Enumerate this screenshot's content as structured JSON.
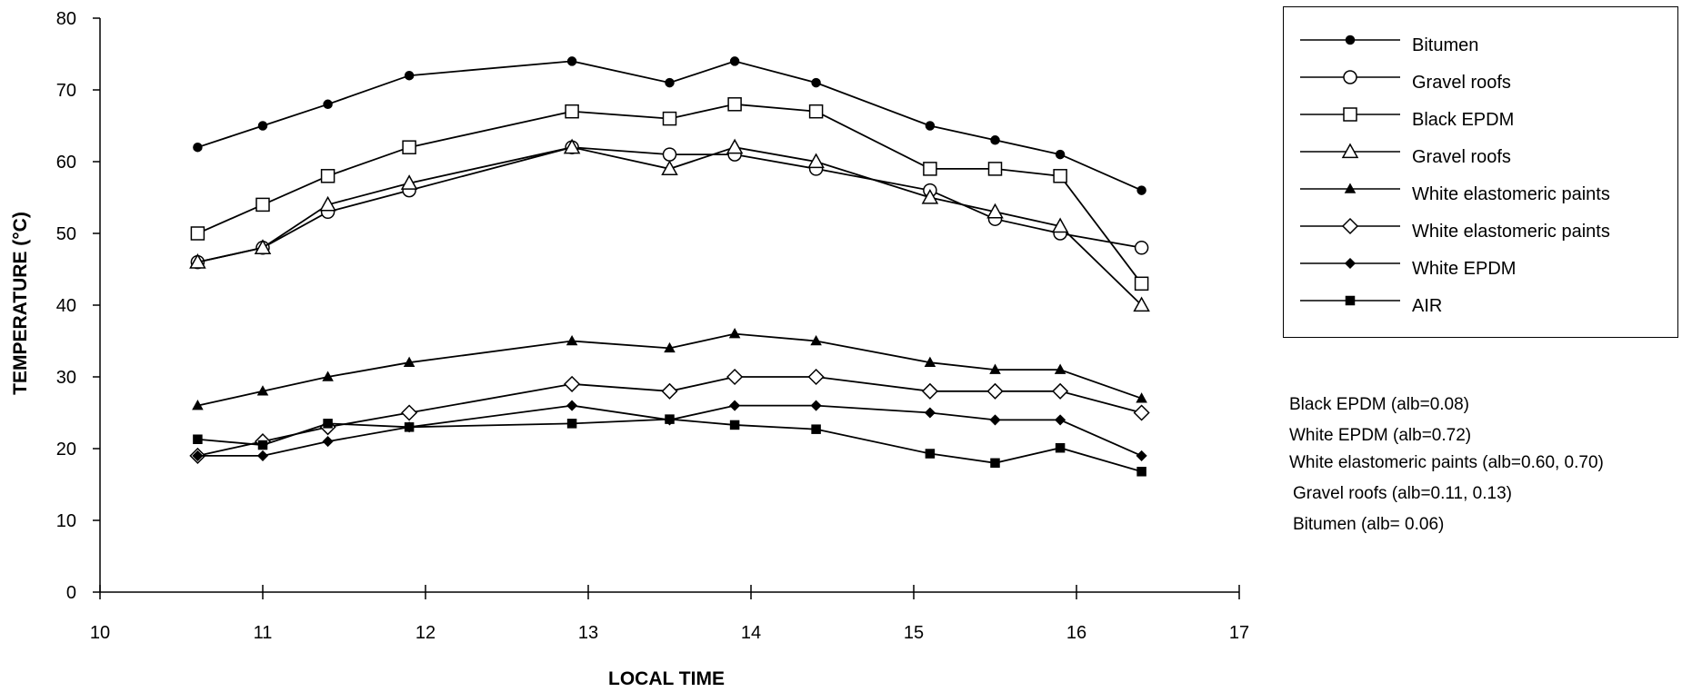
{
  "chart_data": {
    "type": "line",
    "xlabel": "LOCAL TIME",
    "ylabel": "TEMPERATURE (°C)",
    "xlim": [
      10,
      17
    ],
    "ylim": [
      0,
      80
    ],
    "x_ticks": [
      "10",
      "11",
      "12",
      "13",
      "14",
      "15",
      "16",
      "17"
    ],
    "y_ticks": [
      "0",
      "10",
      "20",
      "30",
      "40",
      "50",
      "60",
      "70",
      "80"
    ],
    "grid": false,
    "legend_position": "top-right",
    "series": [
      {
        "name": "Bitumen",
        "marker": "filled-circle",
        "x": [
          10.6,
          11.0,
          11.4,
          11.9,
          12.9,
          13.5,
          13.9,
          14.4,
          15.1,
          15.5,
          15.9,
          16.4
        ],
        "y": [
          62,
          65,
          68,
          72,
          74,
          71,
          74,
          71,
          65,
          63,
          61,
          56
        ]
      },
      {
        "name": "Gravel roofs",
        "marker": "open-circle",
        "x": [
          10.6,
          11.0,
          11.4,
          11.9,
          12.9,
          13.5,
          13.9,
          14.4,
          15.1,
          15.5,
          15.9,
          16.4
        ],
        "y": [
          46,
          48,
          53,
          56,
          62,
          61,
          61,
          59,
          56,
          52,
          50,
          48
        ]
      },
      {
        "name": "Black EPDM",
        "marker": "open-square",
        "x": [
          10.6,
          11.0,
          11.4,
          11.9,
          12.9,
          13.5,
          13.9,
          14.4,
          15.1,
          15.5,
          15.9,
          16.4
        ],
        "y": [
          50,
          54,
          58,
          62,
          67,
          66,
          68,
          67,
          59,
          59,
          58,
          43
        ]
      },
      {
        "name": "Gravel roofs",
        "marker": "open-triangle",
        "x": [
          10.6,
          11.0,
          11.4,
          11.9,
          12.9,
          13.5,
          13.9,
          14.4,
          15.1,
          15.5,
          15.9,
          16.4
        ],
        "y": [
          46,
          48,
          54,
          57,
          62,
          59,
          62,
          60,
          55,
          53,
          51,
          40
        ]
      },
      {
        "name": "White elastomeric paints",
        "marker": "filled-triangle",
        "x": [
          10.6,
          11.0,
          11.4,
          11.9,
          12.9,
          13.5,
          13.9,
          14.4,
          15.1,
          15.5,
          15.9,
          16.4
        ],
        "y": [
          26,
          28,
          30,
          32,
          35,
          34,
          36,
          35,
          32,
          31,
          31,
          27
        ]
      },
      {
        "name": "White elastomeric paints",
        "marker": "open-diamond",
        "x": [
          10.6,
          11.0,
          11.4,
          11.9,
          12.9,
          13.5,
          13.9,
          14.4,
          15.1,
          15.5,
          15.9,
          16.4
        ],
        "y": [
          19,
          21,
          23,
          25,
          29,
          28,
          30,
          30,
          28,
          28,
          28,
          25
        ]
      },
      {
        "name": "White EPDM",
        "marker": "filled-diamond",
        "x": [
          10.6,
          11.0,
          11.4,
          11.9,
          12.9,
          13.5,
          13.9,
          14.4,
          15.1,
          15.5,
          15.9,
          16.4
        ],
        "y": [
          19,
          19,
          21,
          23,
          26,
          24,
          26,
          26,
          25,
          24,
          24,
          19
        ]
      },
      {
        "name": "AIR",
        "marker": "filled-square",
        "x": [
          10.6,
          11.0,
          11.4,
          11.9,
          12.9,
          13.5,
          13.9,
          14.4,
          15.1,
          15.5,
          15.9,
          16.4
        ],
        "y": [
          21.3,
          20.5,
          23.5,
          23,
          23.5,
          24.1,
          23.3,
          22.7,
          19.3,
          18,
          20.1,
          16.8
        ]
      }
    ],
    "notes": [
      "Black EPDM (alb=0.08)",
      "White EPDM (alb=0.72)",
      "White elastomeric paints (alb=0.60, 0.70)",
      "Gravel roofs (alb=0.11, 0.13)",
      "Bitumen (alb= 0.06)"
    ],
    "line_color": "#000000"
  }
}
